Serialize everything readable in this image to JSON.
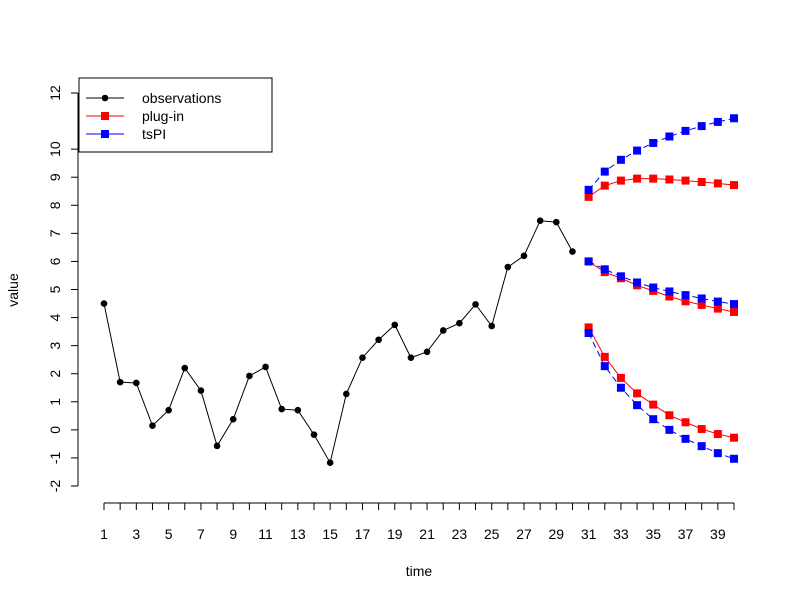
{
  "chart_data": {
    "type": "line",
    "xlabel": "time",
    "ylabel": "value",
    "xlim": [
      1,
      40
    ],
    "ylim": [
      -2,
      12
    ],
    "x_ticks": [
      1,
      3,
      5,
      7,
      9,
      11,
      13,
      15,
      17,
      19,
      21,
      23,
      25,
      27,
      29,
      31,
      33,
      35,
      37,
      39
    ],
    "x_minor_ticks": [
      1,
      2,
      3,
      4,
      5,
      6,
      7,
      8,
      9,
      10,
      11,
      12,
      13,
      14,
      15,
      16,
      17,
      18,
      19,
      20,
      21,
      22,
      23,
      24,
      25,
      26,
      27,
      28,
      29,
      30,
      31,
      32,
      33,
      34,
      35,
      36,
      37,
      38,
      39,
      40
    ],
    "y_ticks": [
      -2,
      -1,
      0,
      1,
      2,
      3,
      4,
      5,
      6,
      7,
      8,
      9,
      10,
      12
    ],
    "grid": false,
    "legend": {
      "position": "top-left",
      "entries": [
        {
          "name": "observations",
          "color": "#000000",
          "marker": "circle"
        },
        {
          "name": "plug-in",
          "color": "#ff0000",
          "marker": "square"
        },
        {
          "name": "tsPI",
          "color": "#0000ff",
          "marker": "square"
        }
      ]
    },
    "series": [
      {
        "name": "observations",
        "color": "#000000",
        "marker": "circle",
        "x": [
          1,
          2,
          3,
          4,
          5,
          6,
          7,
          8,
          9,
          10,
          11,
          12,
          13,
          14,
          15,
          16,
          17,
          18,
          19,
          20,
          21,
          22,
          23,
          24,
          25,
          26,
          27,
          28,
          29,
          30
        ],
        "values": [
          4.5,
          1.7,
          1.67,
          0.15,
          0.7,
          2.2,
          1.4,
          -0.57,
          0.38,
          1.92,
          2.24,
          0.74,
          0.7,
          -0.17,
          -1.17,
          1.28,
          2.57,
          3.21,
          3.74,
          2.57,
          2.78,
          3.54,
          3.8,
          4.47,
          3.7,
          5.8,
          6.2,
          7.45,
          7.4,
          6.35
        ]
      },
      {
        "name": "tsPI",
        "group": "upper",
        "color": "#0000ff",
        "marker": "square",
        "x": [
          31,
          32,
          33,
          34,
          35,
          36,
          37,
          38,
          39,
          40
        ],
        "values": [
          8.55,
          9.2,
          9.62,
          9.95,
          10.22,
          10.45,
          10.65,
          10.82,
          10.97,
          11.1
        ]
      },
      {
        "name": "plug-in",
        "group": "upper",
        "color": "#ff0000",
        "marker": "square",
        "x": [
          31,
          32,
          33,
          34,
          35,
          36,
          37,
          38,
          39,
          40
        ],
        "values": [
          8.3,
          8.7,
          8.88,
          8.95,
          8.95,
          8.92,
          8.88,
          8.83,
          8.78,
          8.72
        ]
      },
      {
        "name": "tsPI",
        "group": "mean",
        "color": "#0000ff",
        "marker": "square",
        "x": [
          31,
          32,
          33,
          34,
          35,
          36,
          37,
          38,
          39,
          40
        ],
        "values": [
          6.0,
          5.72,
          5.47,
          5.25,
          5.07,
          4.93,
          4.8,
          4.68,
          4.57,
          4.48
        ]
      },
      {
        "name": "plug-in",
        "group": "mean",
        "color": "#ff0000",
        "marker": "square",
        "x": [
          31,
          32,
          33,
          34,
          35,
          36,
          37,
          38,
          39,
          40
        ],
        "values": [
          6.0,
          5.62,
          5.4,
          5.15,
          4.95,
          4.75,
          4.58,
          4.45,
          4.32,
          4.2
        ]
      },
      {
        "name": "tsPI",
        "group": "lower",
        "color": "#0000ff",
        "marker": "square",
        "x": [
          31,
          32,
          33,
          34,
          35,
          36,
          37,
          38,
          39,
          40
        ],
        "values": [
          3.45,
          2.27,
          1.5,
          0.88,
          0.38,
          0.0,
          -0.32,
          -0.58,
          -0.83,
          -1.03
        ]
      },
      {
        "name": "plug-in",
        "group": "lower",
        "color": "#ff0000",
        "marker": "square",
        "x": [
          31,
          32,
          33,
          34,
          35,
          36,
          37,
          38,
          39,
          40
        ],
        "values": [
          3.65,
          2.6,
          1.85,
          1.3,
          0.9,
          0.52,
          0.27,
          0.03,
          -0.15,
          -0.28
        ]
      }
    ]
  }
}
